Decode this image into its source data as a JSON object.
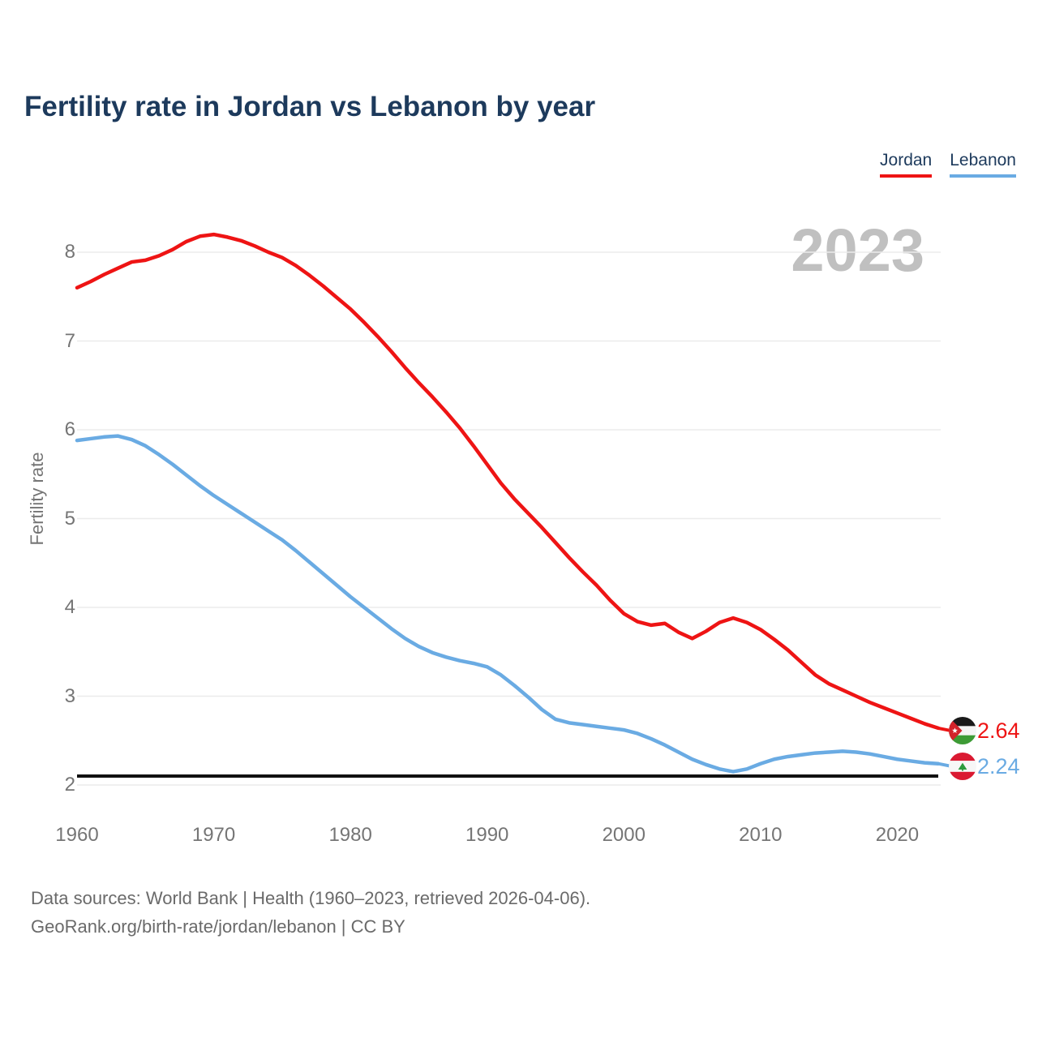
{
  "title": "Fertility rate in Jordan vs Lebanon by year",
  "watermark": "2023",
  "legend": [
    {
      "label": "Jordan",
      "color": "#ee1414"
    },
    {
      "label": "Lebanon",
      "color": "#6aabe3"
    }
  ],
  "y_axis": {
    "label": "Fertility rate",
    "ticks": [
      2,
      3,
      4,
      5,
      6,
      7,
      8
    ]
  },
  "x_axis": {
    "ticks": [
      1960,
      1970,
      1980,
      1990,
      2000,
      2010,
      2020
    ]
  },
  "reference_line": {
    "value": 2.1,
    "color": "#111111"
  },
  "end_labels": [
    {
      "country": "Jordan",
      "value": "2.64",
      "color": "#ee1414",
      "flag": "jordan-flag"
    },
    {
      "country": "Lebanon",
      "value": "2.24",
      "color": "#6aabe3",
      "flag": "lebanon-flag"
    }
  ],
  "footer": {
    "line1": "Data sources: World Bank | Health (1960–2023, retrieved 2026-04-06).",
    "line2": "GeoRank.org/birth-rate/jordan/lebanon | CC BY"
  },
  "chart_data": {
    "type": "line",
    "title": "Fertility rate in Jordan vs Lebanon by year",
    "xlabel": "",
    "ylabel": "Fertility rate",
    "x_range": [
      1960,
      2023
    ],
    "ylim": [
      1.8,
      8.5
    ],
    "grid": true,
    "legend_position": "top-right",
    "x": [
      1960,
      1961,
      1962,
      1963,
      1964,
      1965,
      1966,
      1967,
      1968,
      1969,
      1970,
      1971,
      1972,
      1973,
      1974,
      1975,
      1976,
      1977,
      1978,
      1979,
      1980,
      1981,
      1982,
      1983,
      1984,
      1985,
      1986,
      1987,
      1988,
      1989,
      1990,
      1991,
      1992,
      1993,
      1994,
      1995,
      1996,
      1997,
      1998,
      1999,
      2000,
      2001,
      2002,
      2003,
      2004,
      2005,
      2006,
      2007,
      2008,
      2009,
      2010,
      2011,
      2012,
      2013,
      2014,
      2015,
      2016,
      2017,
      2018,
      2019,
      2020,
      2021,
      2022,
      2023
    ],
    "series": [
      {
        "name": "Jordan",
        "color": "#ee1414",
        "values": [
          7.6,
          7.67,
          7.75,
          7.82,
          7.89,
          7.91,
          7.96,
          8.03,
          8.12,
          8.18,
          8.2,
          8.17,
          8.13,
          8.07,
          8.0,
          7.94,
          7.85,
          7.74,
          7.62,
          7.49,
          7.36,
          7.21,
          7.05,
          6.88,
          6.7,
          6.53,
          6.37,
          6.2,
          6.02,
          5.82,
          5.61,
          5.4,
          5.22,
          5.06,
          4.9,
          4.73,
          4.56,
          4.4,
          4.25,
          4.08,
          3.93,
          3.84,
          3.8,
          3.82,
          3.72,
          3.65,
          3.73,
          3.83,
          3.88,
          3.83,
          3.75,
          3.64,
          3.52,
          3.38,
          3.24,
          3.14,
          3.07,
          3.0,
          2.93,
          2.87,
          2.81,
          2.75,
          2.69,
          2.64
        ]
      },
      {
        "name": "Lebanon",
        "color": "#6aabe3",
        "values": [
          5.88,
          5.9,
          5.92,
          5.93,
          5.89,
          5.82,
          5.72,
          5.61,
          5.49,
          5.37,
          5.26,
          5.16,
          5.06,
          4.96,
          4.86,
          4.76,
          4.64,
          4.51,
          4.38,
          4.25,
          4.12,
          4.0,
          3.88,
          3.76,
          3.65,
          3.56,
          3.49,
          3.44,
          3.4,
          3.37,
          3.33,
          3.24,
          3.12,
          2.99,
          2.85,
          2.74,
          2.7,
          2.68,
          2.66,
          2.64,
          2.62,
          2.58,
          2.52,
          2.45,
          2.37,
          2.29,
          2.23,
          2.18,
          2.15,
          2.18,
          2.24,
          2.29,
          2.32,
          2.34,
          2.36,
          2.37,
          2.38,
          2.37,
          2.35,
          2.32,
          2.29,
          2.27,
          2.25,
          2.24
        ]
      }
    ]
  }
}
